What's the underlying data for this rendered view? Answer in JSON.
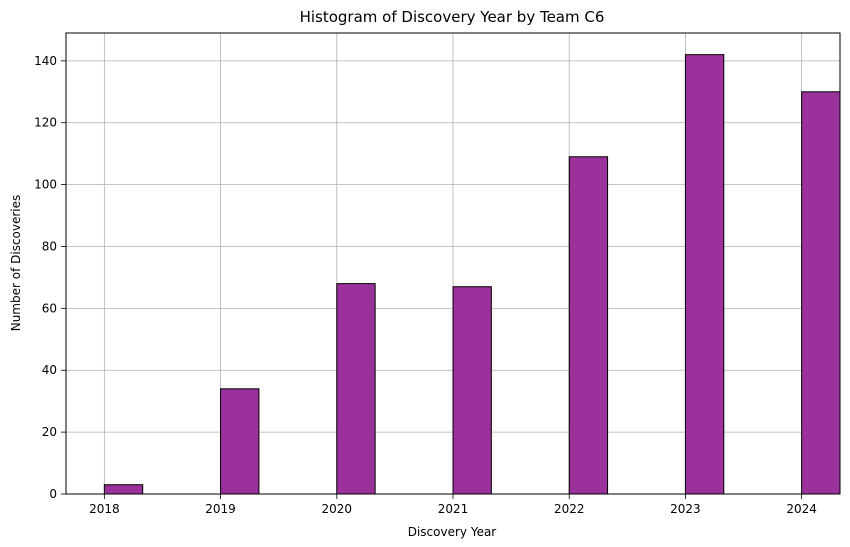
{
  "chart_data": {
    "type": "bar",
    "title": "Histogram of Discovery Year by Team C6",
    "xlabel": "Discovery Year",
    "ylabel": "Number of Discoveries",
    "xlim": [
      2017.67,
      2024.33
    ],
    "ylim": [
      0,
      149
    ],
    "xticks": [
      "2018",
      "2019",
      "2020",
      "2021",
      "2022",
      "2023",
      "2024"
    ],
    "yticks": [
      "0",
      "20",
      "40",
      "60",
      "80",
      "100",
      "120",
      "140"
    ],
    "bins": [
      {
        "start": 2018.0,
        "end": 2018.33,
        "value": 3
      },
      {
        "start": 2019.0,
        "end": 2019.33,
        "value": 34
      },
      {
        "start": 2020.0,
        "end": 2020.33,
        "value": 68
      },
      {
        "start": 2021.0,
        "end": 2021.33,
        "value": 67
      },
      {
        "start": 2022.0,
        "end": 2022.33,
        "value": 109
      },
      {
        "start": 2023.0,
        "end": 2023.33,
        "value": 142
      },
      {
        "start": 2024.0,
        "end": 2024.33,
        "value": 130
      }
    ],
    "grid": true,
    "bar_color": "#9b319b",
    "edge_color": "#000000"
  }
}
